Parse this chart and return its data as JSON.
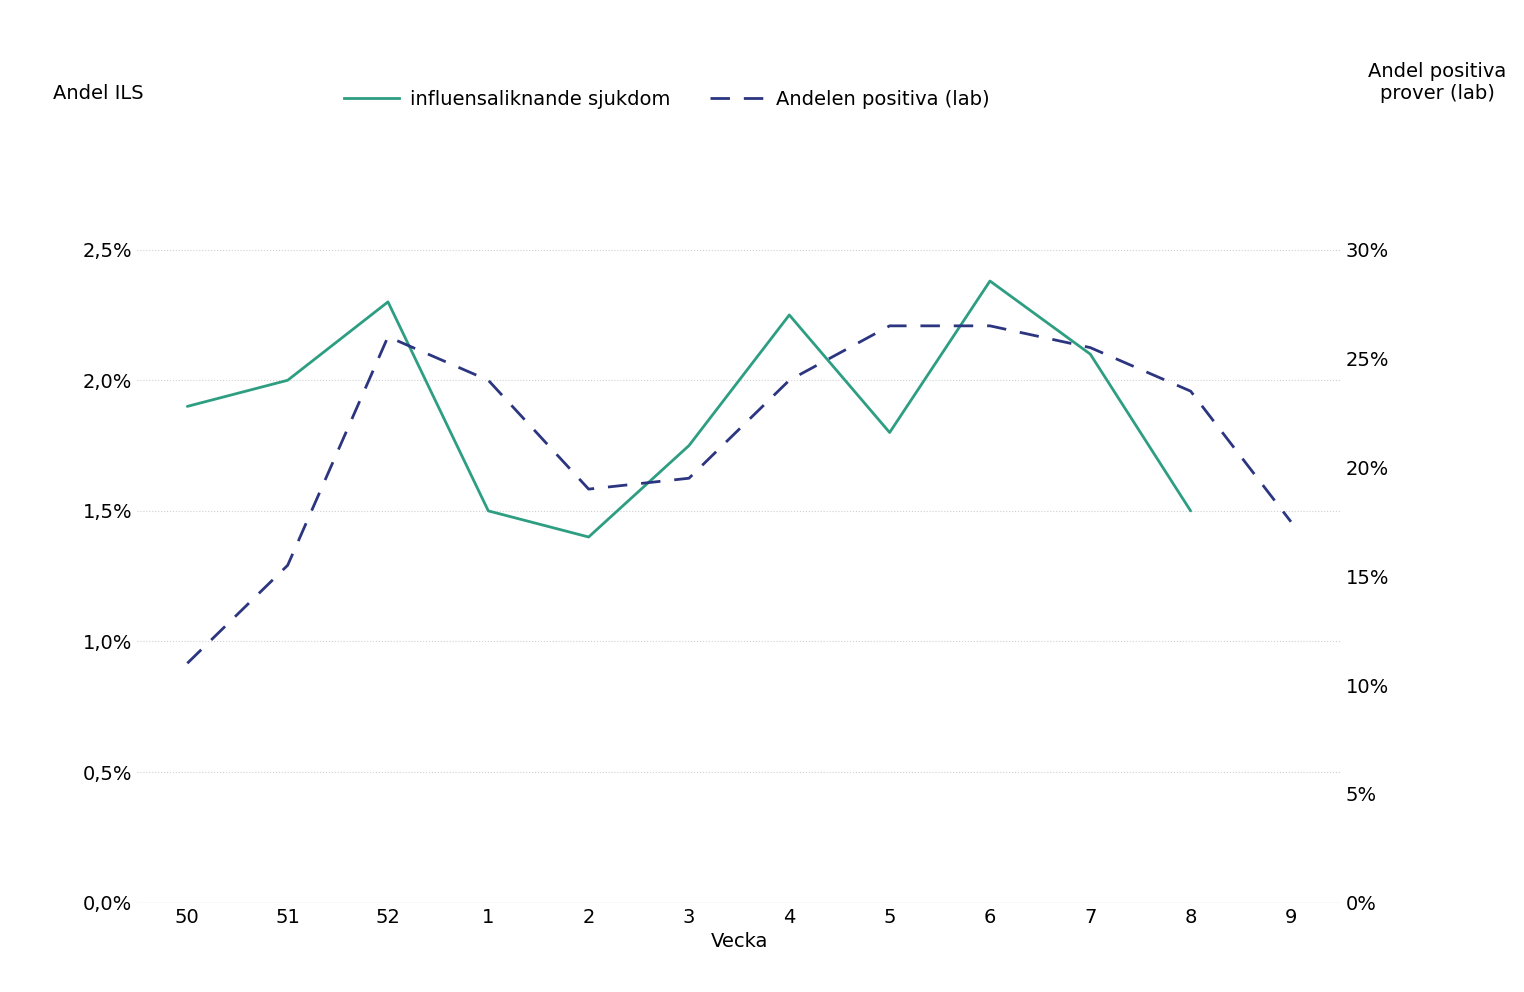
{
  "x_labels": [
    "50",
    "51",
    "52",
    "1",
    "2",
    "3",
    "4",
    "5",
    "6",
    "7",
    "8",
    "9"
  ],
  "ils_values": [
    0.019,
    0.02,
    0.023,
    0.015,
    0.014,
    0.0175,
    0.0225,
    0.018,
    0.0238,
    0.021,
    0.015,
    null
  ],
  "lab_values": [
    0.11,
    0.155,
    0.26,
    0.24,
    0.19,
    0.195,
    0.24,
    0.265,
    0.265,
    0.255,
    0.235,
    0.175
  ],
  "ils_color": "#2e9e82",
  "lab_color": "#2b3580",
  "left_ylabel": "Andel ILS",
  "right_ylabel_line1": "Andel positiva",
  "right_ylabel_line2": "prover (lab)",
  "xlabel": "Vecka",
  "legend_ils": "influensaliknande sjukdom",
  "legend_lab": "Andelen positiva (lab)",
  "left_ylim": [
    0,
    0.03
  ],
  "right_ylim": [
    0,
    0.36
  ],
  "left_yticks": [
    0.0,
    0.005,
    0.01,
    0.015,
    0.02,
    0.025
  ],
  "right_yticks": [
    0.0,
    0.05,
    0.1,
    0.15,
    0.2,
    0.25,
    0.3
  ],
  "background_color": "#ffffff",
  "grid_color": "#d0d0d0",
  "label_fontsize": 14,
  "tick_fontsize": 14,
  "legend_fontsize": 14
}
